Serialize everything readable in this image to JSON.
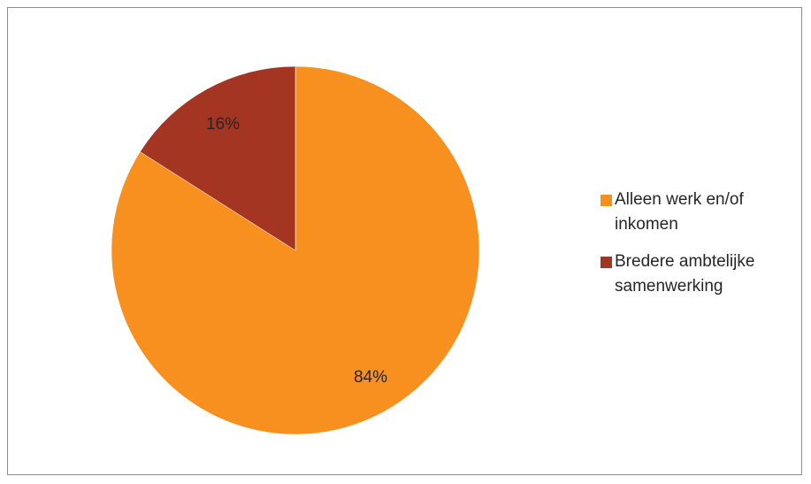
{
  "chart_data": {
    "type": "pie",
    "slices": [
      {
        "label": "Alleen werk en/of inkomen",
        "value": 84,
        "display": "84%",
        "color": "#f7901e"
      },
      {
        "label": "Bredere ambtelijke samenwerking",
        "value": 16,
        "display": "16%",
        "color": "#a33522"
      }
    ],
    "title": "",
    "legend_position": "right"
  }
}
